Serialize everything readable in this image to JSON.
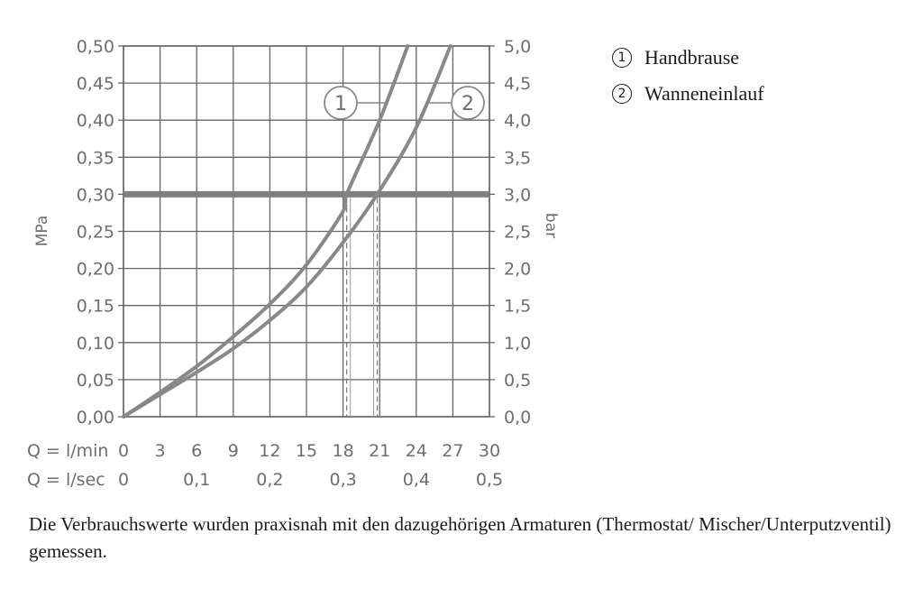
{
  "chart_data": {
    "type": "line",
    "y_left": {
      "label": "MPa",
      "range": [
        0,
        0.5
      ],
      "ticks": [
        "0,00",
        "0,05",
        "0,10",
        "0,15",
        "0,20",
        "0,25",
        "0,30",
        "0,35",
        "0,40",
        "0,45",
        "0,50"
      ]
    },
    "y_right": {
      "label": "bar",
      "range": [
        0,
        5
      ],
      "ticks": [
        "0,0",
        "0,5",
        "1,0",
        "1,5",
        "2,0",
        "2,5",
        "3,0",
        "3,5",
        "4,0",
        "4,5",
        "5,0"
      ]
    },
    "x_lmin": {
      "label": "Q = l/min",
      "range": [
        0,
        30
      ],
      "ticks": [
        "0",
        "3",
        "6",
        "9",
        "12",
        "15",
        "18",
        "21",
        "24",
        "27",
        "30"
      ]
    },
    "x_lsec": {
      "label": "Q = l/sec",
      "ticks": [
        {
          "value": 0,
          "label": "0"
        },
        {
          "value": 0.1,
          "label": "0,1"
        },
        {
          "value": 0.2,
          "label": "0,2"
        },
        {
          "value": 0.3,
          "label": "0,3"
        },
        {
          "value": 0.4,
          "label": "0,4"
        },
        {
          "value": 0.5,
          "label": "0,5"
        }
      ]
    },
    "grid": true,
    "reference_line": {
      "y": 0.3
    },
    "series": [
      {
        "name": "Handbrause",
        "marker": "1",
        "x": [
          0,
          3,
          6,
          9,
          12,
          15,
          18,
          18.3,
          21,
          23.3
        ],
        "y": [
          0,
          0.033,
          0.068,
          0.108,
          0.152,
          0.205,
          0.277,
          0.3,
          0.4,
          0.5
        ],
        "flow_at_reference": 18.3
      },
      {
        "name": "Wanneneinlauf",
        "marker": "2",
        "x": [
          0,
          3,
          6,
          9,
          12,
          15,
          18,
          20.8,
          24,
          26.8
        ],
        "y": [
          0,
          0.03,
          0.06,
          0.092,
          0.13,
          0.175,
          0.235,
          0.3,
          0.39,
          0.5
        ],
        "flow_at_reference": 20.8
      }
    ],
    "line_color": "#888888",
    "grid_color": "#666666"
  },
  "legend": [
    {
      "marker": "1",
      "label": "Handbrause"
    },
    {
      "marker": "2",
      "label": "Wanneneinlauf"
    }
  ],
  "caption": "Die Verbrauchswerte wurden praxisnah mit den dazugehörigen Armaturen (Thermostat/ Mischer/Unterputzventil) gemessen."
}
